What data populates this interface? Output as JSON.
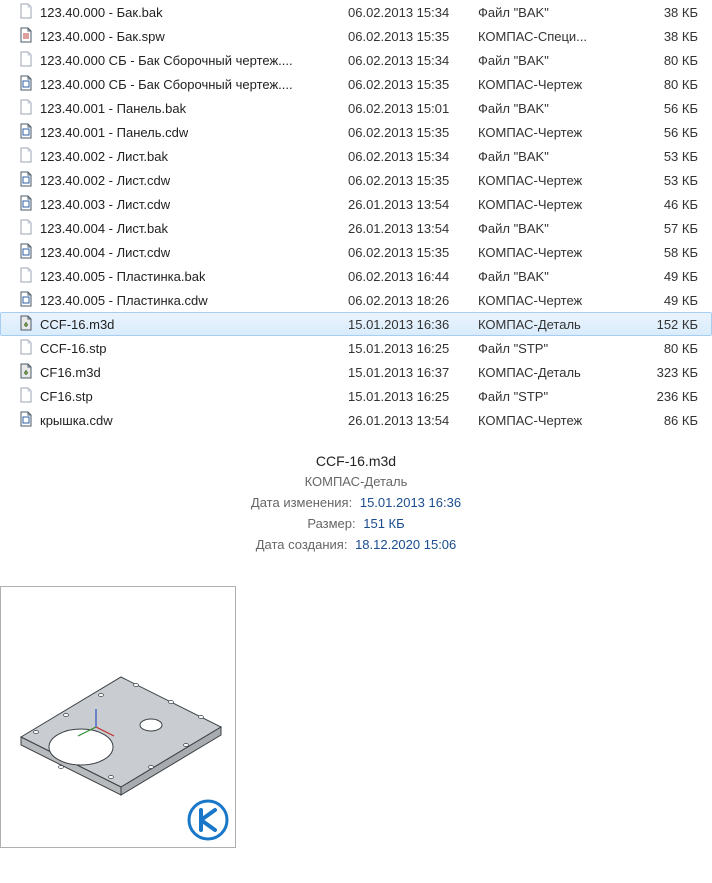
{
  "icons": {
    "blank": {
      "stroke": "#9aa6b2",
      "fill": "#ffffff",
      "fold": "#c9d1d9"
    },
    "spw": {
      "stroke": "#4a5a6a",
      "fill": "#ffffff",
      "mark": "#c04040"
    },
    "cdw": {
      "stroke": "#4a5a6a",
      "fill": "#ffffff",
      "mark": "#2f5fa3"
    },
    "m3d": {
      "stroke": "#4a5a6a",
      "fill": "#e8e8e8",
      "mark": "#6b9b3a"
    }
  },
  "files": [
    {
      "icon": "blank",
      "name": "123.40.000 - Бак.bak",
      "date": "06.02.2013 15:34",
      "type": "Файл \"BAK\"",
      "size": "38 КБ",
      "selected": false
    },
    {
      "icon": "spw",
      "name": "123.40.000 - Бак.spw",
      "date": "06.02.2013 15:35",
      "type": "КОМПАС-Специ...",
      "size": "38 КБ",
      "selected": false
    },
    {
      "icon": "blank",
      "name": "123.40.000 СБ - Бак Сборочный чертеж....",
      "date": "06.02.2013 15:34",
      "type": "Файл \"BAK\"",
      "size": "80 КБ",
      "selected": false
    },
    {
      "icon": "cdw",
      "name": "123.40.000 СБ - Бак Сборочный чертеж....",
      "date": "06.02.2013 15:35",
      "type": "КОМПАС-Чертеж",
      "size": "80 КБ",
      "selected": false
    },
    {
      "icon": "blank",
      "name": "123.40.001 - Панель.bak",
      "date": "06.02.2013 15:01",
      "type": "Файл \"BAK\"",
      "size": "56 КБ",
      "selected": false
    },
    {
      "icon": "cdw",
      "name": "123.40.001 - Панель.cdw",
      "date": "06.02.2013 15:35",
      "type": "КОМПАС-Чертеж",
      "size": "56 КБ",
      "selected": false
    },
    {
      "icon": "blank",
      "name": "123.40.002 - Лист.bak",
      "date": "06.02.2013 15:34",
      "type": "Файл \"BAK\"",
      "size": "53 КБ",
      "selected": false
    },
    {
      "icon": "cdw",
      "name": "123.40.002 - Лист.cdw",
      "date": "06.02.2013 15:35",
      "type": "КОМПАС-Чертеж",
      "size": "53 КБ",
      "selected": false
    },
    {
      "icon": "cdw",
      "name": "123.40.003 - Лист.cdw",
      "date": "26.01.2013 13:54",
      "type": "КОМПАС-Чертеж",
      "size": "46 КБ",
      "selected": false
    },
    {
      "icon": "blank",
      "name": "123.40.004 - Лист.bak",
      "date": "26.01.2013 13:54",
      "type": "Файл \"BAK\"",
      "size": "57 КБ",
      "selected": false
    },
    {
      "icon": "cdw",
      "name": "123.40.004 - Лист.cdw",
      "date": "06.02.2013 15:35",
      "type": "КОМПАС-Чертеж",
      "size": "58 КБ",
      "selected": false
    },
    {
      "icon": "blank",
      "name": "123.40.005 - Пластинка.bak",
      "date": "06.02.2013 16:44",
      "type": "Файл \"BAK\"",
      "size": "49 КБ",
      "selected": false
    },
    {
      "icon": "cdw",
      "name": "123.40.005 - Пластинка.cdw",
      "date": "06.02.2013 18:26",
      "type": "КОМПАС-Чертеж",
      "size": "49 КБ",
      "selected": false
    },
    {
      "icon": "m3d",
      "name": "CCF-16.m3d",
      "date": "15.01.2013 16:36",
      "type": "КОМПАС-Деталь",
      "size": "152 КБ",
      "selected": true
    },
    {
      "icon": "blank",
      "name": "CCF-16.stp",
      "date": "15.01.2013 16:25",
      "type": "Файл \"STP\"",
      "size": "80 КБ",
      "selected": false
    },
    {
      "icon": "m3d",
      "name": "CF16.m3d",
      "date": "15.01.2013 16:37",
      "type": "КОМПАС-Деталь",
      "size": "323 КБ",
      "selected": false
    },
    {
      "icon": "blank",
      "name": "CF16.stp",
      "date": "15.01.2013 16:25",
      "type": "Файл \"STP\"",
      "size": "236 КБ",
      "selected": false
    },
    {
      "icon": "cdw",
      "name": "крышка.cdw",
      "date": "26.01.2013 13:54",
      "type": "КОМПАС-Чертеж",
      "size": "86 КБ",
      "selected": false
    }
  ],
  "details": {
    "filename": "CCF-16.m3d",
    "filetype": "КОМПАС-Деталь",
    "labels": {
      "modified": "Дата изменения:",
      "size": "Размер:",
      "created": "Дата создания:"
    },
    "modified": "15.01.2013 16:36",
    "size": "151 КБ",
    "created": "18.12.2020 15:06"
  },
  "preview": {
    "plate_fill": "#c9cdd1",
    "plate_stroke": "#3a3f44",
    "hole_fill": "#ffffff",
    "axis_colors": {
      "x": "#c03030",
      "y": "#2f8f2f",
      "z": "#3050c0"
    },
    "brand_color": "#1877c9"
  }
}
